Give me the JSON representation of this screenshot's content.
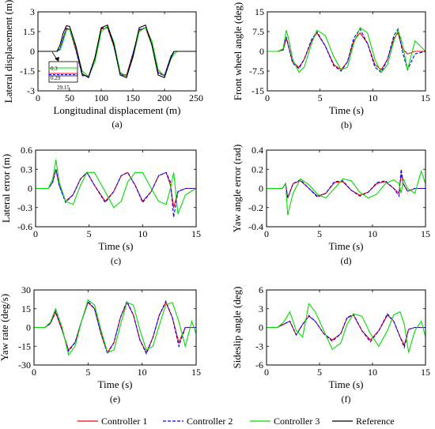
{
  "chart_data": [
    {
      "id": "a",
      "type": "line",
      "caption": "(a)",
      "xlabel": "Longitudinal displacement (m)",
      "ylabel": "Lateral displacement (m)",
      "xlim": [
        0,
        250
      ],
      "ylim": [
        -3,
        3
      ],
      "xticks": [
        0,
        50,
        100,
        150,
        200,
        250
      ],
      "yticks": [
        -3,
        -1.5,
        0,
        1.5,
        3
      ],
      "xtick_labels": [
        "0",
        "50",
        "100",
        "150",
        "200",
        "250"
      ],
      "ytick_labels": [
        "-3",
        "-1.5",
        "0",
        "1.5",
        "3"
      ],
      "x": [
        0,
        30,
        35,
        40,
        45,
        50,
        60,
        70,
        80,
        90,
        100,
        110,
        120,
        130,
        140,
        150,
        160,
        170,
        180,
        190,
        200,
        210,
        215,
        220,
        230,
        250
      ],
      "series": [
        {
          "name": "Controller 1",
          "color": "#ff0000",
          "dash": "solid",
          "values": [
            0,
            0,
            0.2,
            1.0,
            1.7,
            1.7,
            0.1,
            -1.8,
            -1.9,
            -0.5,
            1.7,
            1.8,
            0.4,
            -1.7,
            -1.8,
            -0.2,
            1.6,
            1.8,
            0.5,
            -1.6,
            -1.8,
            -0.4,
            0,
            0,
            0,
            0
          ]
        },
        {
          "name": "Controller 2",
          "color": "#0000ff",
          "dash": "dash",
          "values": [
            0,
            0,
            0.2,
            1.0,
            1.75,
            1.7,
            0.1,
            -1.85,
            -1.9,
            -0.5,
            1.75,
            1.8,
            0.4,
            -1.75,
            -1.85,
            -0.2,
            1.65,
            1.8,
            0.5,
            -1.65,
            -1.85,
            -0.4,
            0,
            0,
            0,
            0
          ]
        },
        {
          "name": "Controller 3",
          "color": "#00dd00",
          "dash": "solid",
          "values": [
            0,
            0,
            0.1,
            0.8,
            1.6,
            1.7,
            0.3,
            -1.5,
            -1.9,
            -0.8,
            1.5,
            1.9,
            0.7,
            -1.6,
            -1.9,
            -0.5,
            1.5,
            1.8,
            0.8,
            -1.4,
            -1.9,
            -0.6,
            -0.2,
            0,
            0,
            0
          ]
        },
        {
          "name": "Reference",
          "color": "#000000",
          "dash": "solid",
          "values": [
            0,
            0,
            0.5,
            1.4,
            1.95,
            1.9,
            0.4,
            -1.7,
            -2.0,
            -0.5,
            1.8,
            2.0,
            0.5,
            -1.8,
            -2.0,
            -0.4,
            1.8,
            2.0,
            0.5,
            -1.8,
            -2.0,
            -0.5,
            0,
            0,
            0,
            0
          ]
        }
      ],
      "inset": {
        "label_top": "0.3",
        "label_bottom": "0.29",
        "label_x": "29.15"
      },
      "legend": "bottom"
    },
    {
      "id": "b",
      "type": "line",
      "caption": "(b)",
      "xlabel": "Time (s)",
      "ylabel": "Front wheel angle (deg)",
      "xlim": [
        0,
        15
      ],
      "ylim": [
        -15,
        15
      ],
      "xticks": [
        0,
        5,
        10,
        15
      ],
      "yticks": [
        -15,
        -7.5,
        0,
        7.5,
        15
      ],
      "xtick_labels": [
        "0",
        "5",
        "10",
        "15"
      ],
      "ytick_labels": [
        "-15",
        "-7.5",
        "0",
        "7.5",
        "15"
      ],
      "x": [
        0,
        1,
        1.5,
        1.8,
        2.0,
        2.4,
        3,
        3.5,
        4.2,
        4.7,
        5.5,
        6.3,
        7.0,
        7.6,
        8.2,
        8.8,
        9.5,
        10.2,
        10.8,
        11.4,
        12.0,
        12.4,
        12.8,
        13.3,
        14,
        15
      ],
      "series": [
        {
          "name": "Controller 1",
          "color": "#ff0000",
          "dash": "solid",
          "values": [
            0,
            0,
            0.5,
            5,
            2,
            -4,
            -6,
            -3,
            4,
            7,
            2,
            -5,
            -7,
            -4,
            4,
            7,
            3,
            -5,
            -7,
            -3,
            5,
            7,
            1,
            -1,
            0,
            0
          ]
        },
        {
          "name": "Controller 2",
          "color": "#0000ff",
          "dash": "dash",
          "values": [
            0,
            0,
            0.5,
            5.5,
            2,
            -4.5,
            -6.5,
            -3,
            4.5,
            7.5,
            2,
            -5.5,
            -7.5,
            -4,
            5,
            8.5,
            3,
            -6,
            -8,
            -3,
            6,
            8.5,
            0,
            -7,
            -1,
            0
          ]
        },
        {
          "name": "Controller 3",
          "color": "#00dd00",
          "dash": "solid",
          "values": [
            0,
            0,
            1,
            8,
            5,
            -3,
            -8,
            -6,
            3,
            8,
            6,
            -2,
            -7,
            -6,
            3,
            9,
            7,
            -3,
            -8,
            -5,
            4,
            8,
            3,
            -7,
            4,
            0
          ]
        }
      ]
    },
    {
      "id": "c",
      "type": "line",
      "caption": "(c)",
      "xlabel": "Time (s)",
      "ylabel": "Lateral error (m)",
      "xlim": [
        0,
        15
      ],
      "ylim": [
        -0.6,
        0.6
      ],
      "xticks": [
        0,
        5,
        10,
        15
      ],
      "yticks": [
        -0.6,
        -0.3,
        0,
        0.3,
        0.6
      ],
      "xtick_labels": [
        "0",
        "5",
        "10",
        "15"
      ],
      "ytick_labels": [
        "-0.6",
        "-0.3",
        "0",
        "0.3",
        "0.6"
      ],
      "x": [
        0,
        1.2,
        1.6,
        1.9,
        2.2,
        2.8,
        3.5,
        4.2,
        4.8,
        5.5,
        6.5,
        7.3,
        8.0,
        8.6,
        9.3,
        10.0,
        10.8,
        11.5,
        12.2,
        12.6,
        12.9,
        13.3,
        14,
        15
      ],
      "series": [
        {
          "name": "Controller 1",
          "color": "#ff0000",
          "dash": "solid",
          "values": [
            0,
            0,
            0.1,
            0.3,
            0.05,
            -0.2,
            -0.1,
            0.15,
            0.25,
            0.05,
            -0.2,
            -0.05,
            0.2,
            0.25,
            0.05,
            -0.2,
            -0.05,
            0.2,
            0.25,
            0.05,
            -0.3,
            -0.05,
            0,
            0
          ]
        },
        {
          "name": "Controller 2",
          "color": "#0000ff",
          "dash": "dash",
          "values": [
            0,
            0,
            0.1,
            0.3,
            0.05,
            -0.22,
            -0.1,
            0.15,
            0.25,
            0.05,
            -0.22,
            -0.05,
            0.2,
            0.25,
            0.05,
            -0.22,
            -0.05,
            0.2,
            0.25,
            0.1,
            -0.45,
            -0.05,
            0,
            0
          ]
        },
        {
          "name": "Controller 3",
          "color": "#00dd00",
          "dash": "solid",
          "values": [
            0,
            0,
            0.15,
            0.45,
            0.1,
            -0.2,
            -0.25,
            0.05,
            0.25,
            0.25,
            -0.05,
            -0.3,
            -0.2,
            0.1,
            0.25,
            0.25,
            0.0,
            -0.2,
            -0.25,
            0.0,
            0.25,
            -0.4,
            -0.1,
            0
          ]
        }
      ]
    },
    {
      "id": "d",
      "type": "line",
      "caption": "(d)",
      "xlabel": "Time (s)",
      "ylabel": "Yaw angle error (rad)",
      "xlim": [
        0,
        15
      ],
      "ylim": [
        -0.4,
        0.4
      ],
      "xticks": [
        0,
        5,
        10,
        15
      ],
      "yticks": [
        -0.4,
        -0.2,
        0,
        0.2,
        0.4
      ],
      "xtick_labels": [
        "0",
        "5",
        "10",
        "15"
      ],
      "ytick_labels": [
        "-0.4",
        "-0.2",
        "0",
        "0.2",
        "0.4"
      ],
      "x": [
        0,
        1.5,
        1.8,
        2.0,
        2.5,
        3.2,
        4.0,
        4.8,
        5.6,
        6.4,
        7.2,
        8.0,
        8.8,
        9.6,
        10.4,
        11.2,
        12.0,
        12.5,
        12.7,
        12.9,
        13.3,
        14,
        14.6,
        15
      ],
      "series": [
        {
          "name": "Controller 1",
          "color": "#ff0000",
          "dash": "solid",
          "values": [
            0,
            0,
            0.05,
            -0.1,
            0.05,
            0.08,
            0.0,
            -0.08,
            -0.05,
            0.06,
            0.07,
            -0.02,
            -0.07,
            -0.04,
            0.05,
            0.07,
            0.0,
            -0.05,
            0.15,
            0.05,
            -0.03,
            0,
            0,
            0
          ]
        },
        {
          "name": "Controller 2",
          "color": "#0000ff",
          "dash": "dash",
          "values": [
            0,
            0,
            0.05,
            -0.1,
            0.05,
            0.09,
            0.0,
            -0.09,
            -0.05,
            0.07,
            0.08,
            -0.02,
            -0.08,
            -0.04,
            0.06,
            0.08,
            0.0,
            -0.08,
            0.2,
            0.05,
            -0.03,
            0,
            0,
            0
          ]
        },
        {
          "name": "Controller 3",
          "color": "#00dd00",
          "dash": "solid",
          "values": [
            0,
            0,
            0.05,
            -0.28,
            -0.05,
            0.1,
            0.04,
            -0.06,
            -0.1,
            0.0,
            0.1,
            0.08,
            -0.04,
            -0.1,
            -0.06,
            0.05,
            0.09,
            0.05,
            -0.05,
            0.1,
            0.0,
            -0.05,
            0.18,
            0.05
          ]
        }
      ]
    },
    {
      "id": "e",
      "type": "line",
      "caption": "(e)",
      "xlabel": "Time (s)",
      "ylabel": "Yaw rate (deg/s)",
      "xlim": [
        0,
        15
      ],
      "ylim": [
        -30,
        30
      ],
      "xticks": [
        0,
        5,
        10,
        15
      ],
      "yticks": [
        -30,
        -15,
        0,
        15,
        30
      ],
      "xtick_labels": [
        "0",
        "5",
        "10",
        "15"
      ],
      "ytick_labels": [
        "-30",
        "-15",
        "0",
        "15",
        "30"
      ],
      "x": [
        0,
        1,
        1.5,
        2.0,
        2.6,
        3.2,
        3.8,
        4.4,
        5.0,
        5.6,
        6.2,
        6.8,
        7.4,
        8.0,
        8.6,
        9.2,
        9.8,
        10.4,
        11.0,
        11.6,
        12.2,
        12.8,
        13.4,
        14,
        14.6,
        15
      ],
      "series": [
        {
          "name": "Controller 1",
          "color": "#ff0000",
          "dash": "solid",
          "values": [
            0,
            0,
            3,
            12,
            -2,
            -18,
            -12,
            5,
            20,
            15,
            -5,
            -20,
            -12,
            8,
            20,
            10,
            -10,
            -20,
            -8,
            10,
            20,
            8,
            -12,
            0,
            0,
            0
          ]
        },
        {
          "name": "Controller 2",
          "color": "#0000ff",
          "dash": "dash",
          "values": [
            0,
            0,
            3,
            13,
            -2,
            -19,
            -12,
            5,
            21,
            15,
            -5,
            -21,
            -12,
            8,
            21,
            10,
            -10,
            -21,
            -8,
            10,
            21,
            8,
            -15,
            0,
            0,
            0
          ]
        },
        {
          "name": "Controller 3",
          "color": "#00dd00",
          "dash": "solid",
          "values": [
            0,
            0,
            4,
            15,
            0,
            -22,
            -15,
            5,
            22,
            18,
            -2,
            -20,
            -18,
            2,
            20,
            18,
            -2,
            -18,
            -15,
            2,
            18,
            20,
            5,
            -15,
            5,
            -5
          ]
        }
      ]
    },
    {
      "id": "f",
      "type": "line",
      "caption": "(f)",
      "xlabel": "Time (s)",
      "ylabel": "Sideslip angle (deg)",
      "xlim": [
        0,
        15
      ],
      "ylim": [
        -6,
        6
      ],
      "xticks": [
        0,
        5,
        10,
        15
      ],
      "yticks": [
        -6,
        -3,
        0,
        3,
        6
      ],
      "xtick_labels": [
        "0",
        "5",
        "10",
        "15"
      ],
      "ytick_labels": [
        "-6",
        "-3",
        "0",
        "3",
        "6"
      ],
      "x": [
        0,
        1,
        1.6,
        2.2,
        2.8,
        3.4,
        4.0,
        4.6,
        5.4,
        6.2,
        7.0,
        7.6,
        8.2,
        9.0,
        9.8,
        10.6,
        11.4,
        12.0,
        12.6,
        13.0,
        13.4,
        14,
        14.6,
        15
      ],
      "series": [
        {
          "name": "Controller 1",
          "color": "#ff0000",
          "dash": "solid",
          "values": [
            0,
            0,
            0.5,
            1.0,
            -1.2,
            0.5,
            1.8,
            1.0,
            -1.0,
            -2.0,
            -1.0,
            1.5,
            2.0,
            -0.5,
            -2.0,
            -0.5,
            2.0,
            1.0,
            -1.5,
            -2.8,
            -0.3,
            0,
            0,
            0
          ]
        },
        {
          "name": "Controller 2",
          "color": "#0000ff",
          "dash": "dash",
          "values": [
            0,
            0,
            0.5,
            1.0,
            -1.2,
            0.5,
            1.9,
            1.0,
            -1.0,
            -2.2,
            -1.0,
            1.6,
            2.1,
            -0.5,
            -2.3,
            -0.5,
            2.2,
            1.0,
            -1.5,
            -3.2,
            -0.3,
            0,
            0,
            0
          ]
        },
        {
          "name": "Controller 3",
          "color": "#00dd00",
          "dash": "solid",
          "values": [
            0,
            0,
            0.8,
            2.5,
            -0.5,
            -1.5,
            3.8,
            2.5,
            -0.5,
            -3.5,
            -2.5,
            0.5,
            2.2,
            1.8,
            -1.0,
            -3.0,
            -0.5,
            2.0,
            2.5,
            0.5,
            -4.0,
            -0.5,
            1.0,
            -1.5
          ]
        }
      ]
    }
  ],
  "legend": {
    "items": [
      {
        "label": "Controller 1",
        "color": "#ff0000",
        "dash": "solid"
      },
      {
        "label": "Controller 2",
        "color": "#0000ff",
        "dash": "dash"
      },
      {
        "label": "Controller 3",
        "color": "#00dd00",
        "dash": "solid"
      },
      {
        "label": "Reference",
        "color": "#000000",
        "dash": "solid"
      }
    ]
  }
}
